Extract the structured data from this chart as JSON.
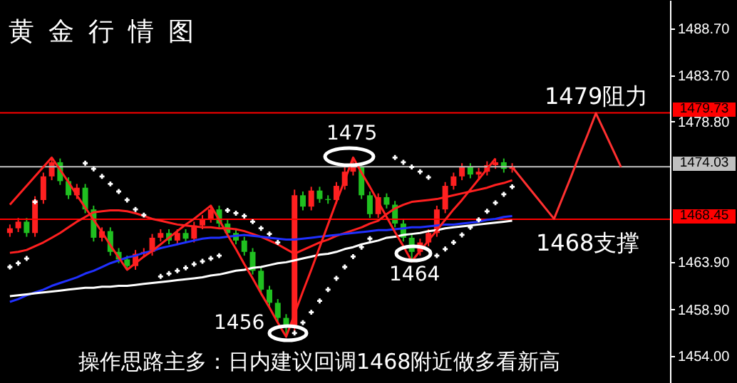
{
  "chart_data": {
    "type": "candlestick",
    "title": "黄金行情图",
    "categories": [
      null,
      null,
      null,
      null,
      null,
      null,
      null,
      null,
      null,
      null,
      null,
      null,
      null,
      null,
      null,
      null,
      null,
      null,
      null,
      null,
      null,
      null,
      null,
      null,
      null,
      null,
      null,
      null,
      null,
      null,
      null,
      null,
      null,
      null,
      null,
      null,
      null,
      null,
      null,
      null,
      null,
      null,
      null,
      null,
      null,
      null,
      null,
      null,
      null,
      null,
      null,
      null,
      null,
      null,
      null,
      null,
      null,
      null,
      null,
      null,
      null,
      null,
      null,
      null,
      null,
      null,
      null,
      null,
      null,
      null,
      null,
      null,
      null,
      null,
      null,
      null,
      null,
      null,
      null
    ],
    "ohlc": [
      [
        1467.0,
        1467.9,
        1466.6,
        1467.5
      ],
      [
        1467.5,
        1468.6,
        1467.1,
        1468.2
      ],
      [
        1468.2,
        1468.6,
        1466.6,
        1467.0
      ],
      [
        1467.0,
        1470.9,
        1466.6,
        1470.5
      ],
      [
        1470.5,
        1473.4,
        1470.1,
        1473.0
      ],
      [
        1473.0,
        1475.0,
        1472.6,
        1474.5
      ],
      [
        1474.5,
        1474.9,
        1472.1,
        1472.5
      ],
      [
        1472.5,
        1472.9,
        1470.6,
        1471.0
      ],
      [
        1471.0,
        1472.2,
        1470.6,
        1471.8
      ],
      [
        1471.8,
        1472.2,
        1469.1,
        1469.5
      ],
      [
        1469.5,
        1469.9,
        1466.1,
        1466.5
      ],
      [
        1466.5,
        1467.6,
        1466.1,
        1467.2
      ],
      [
        1467.2,
        1467.6,
        1464.6,
        1465.0
      ],
      [
        1465.0,
        1465.4,
        1463.8,
        1464.2
      ],
      [
        1464.2,
        1464.6,
        1463.1,
        1463.5
      ],
      [
        1463.5,
        1465.2,
        1463.1,
        1464.8
      ],
      [
        1464.8,
        1465.4,
        1464.4,
        1465.0
      ],
      [
        1465.0,
        1466.9,
        1464.6,
        1466.5
      ],
      [
        1466.5,
        1467.4,
        1466.1,
        1467.0
      ],
      [
        1467.0,
        1467.4,
        1465.8,
        1466.2
      ],
      [
        1466.2,
        1467.4,
        1465.8,
        1467.0
      ],
      [
        1467.0,
        1467.4,
        1466.0,
        1466.4
      ],
      [
        1466.4,
        1468.2,
        1466.0,
        1467.8
      ],
      [
        1467.8,
        1468.9,
        1467.4,
        1468.5
      ],
      [
        1468.5,
        1469.9,
        1468.1,
        1469.5
      ],
      [
        1469.5,
        1469.9,
        1467.6,
        1468.0
      ],
      [
        1468.0,
        1468.4,
        1466.6,
        1467.0
      ],
      [
        1467.0,
        1467.4,
        1465.8,
        1466.2
      ],
      [
        1466.2,
        1466.6,
        1464.6,
        1465.0
      ],
      [
        1465.0,
        1465.4,
        1462.6,
        1463.0
      ],
      [
        1463.0,
        1463.4,
        1460.6,
        1461.0
      ],
      [
        1461.0,
        1461.4,
        1459.2,
        1459.6
      ],
      [
        1459.6,
        1460.0,
        1457.6,
        1458.0
      ],
      [
        1458.0,
        1458.4,
        1456.0,
        1457.0
      ],
      [
        1457.0,
        1471.6,
        1456.6,
        1471.0
      ],
      [
        1471.0,
        1471.4,
        1469.4,
        1469.8
      ],
      [
        1469.8,
        1471.9,
        1469.4,
        1471.5
      ],
      [
        1471.5,
        1471.9,
        1470.2,
        1470.6
      ],
      [
        1470.6,
        1471.0,
        1470.1,
        1470.5
      ],
      [
        1470.5,
        1472.4,
        1470.1,
        1472.0
      ],
      [
        1472.0,
        1474.3,
        1471.6,
        1473.5
      ],
      [
        1473.5,
        1475.0,
        1473.1,
        1474.0
      ],
      [
        1474.0,
        1474.4,
        1470.6,
        1471.0
      ],
      [
        1471.0,
        1471.4,
        1468.6,
        1469.0
      ],
      [
        1469.0,
        1471.2,
        1468.6,
        1470.8
      ],
      [
        1470.8,
        1471.2,
        1469.6,
        1470.0
      ],
      [
        1470.0,
        1470.4,
        1467.6,
        1468.0
      ],
      [
        1468.0,
        1468.4,
        1466.1,
        1466.5
      ],
      [
        1466.5,
        1466.9,
        1464.0,
        1465.0
      ],
      [
        1465.0,
        1466.4,
        1464.6,
        1466.0
      ],
      [
        1466.0,
        1467.4,
        1465.6,
        1467.0
      ],
      [
        1467.0,
        1469.9,
        1466.6,
        1469.5
      ],
      [
        1469.5,
        1472.4,
        1469.1,
        1472.0
      ],
      [
        1472.0,
        1473.4,
        1471.6,
        1473.0
      ],
      [
        1473.0,
        1474.4,
        1472.6,
        1474.0
      ],
      [
        1474.0,
        1474.4,
        1472.8,
        1473.2
      ],
      [
        1473.2,
        1473.9,
        1472.8,
        1473.5
      ],
      [
        1473.5,
        1474.6,
        1473.1,
        1474.2
      ],
      [
        1474.2,
        1474.9,
        1473.8,
        1474.5
      ],
      [
        1474.5,
        1474.9,
        1473.4,
        1473.8
      ],
      [
        1473.8,
        1474.4,
        1473.4,
        1474.03
      ],
      null,
      null,
      null,
      null,
      null,
      null,
      null,
      null,
      null,
      null,
      null,
      null,
      null,
      null,
      null,
      null,
      null,
      null
    ],
    "colors": [
      "#ff2020",
      "#ff2020",
      "#20c020",
      "#ff2020",
      "#ff2020",
      "#ff2020",
      "#20c020",
      "#20c020",
      "#ff2020",
      "#20c020",
      "#20c020",
      "#ff2020",
      "#20c020",
      "#20c020",
      "#20c020",
      "#ff2020",
      "#ff2020",
      "#ff2020",
      "#ff2020",
      "#20c020",
      "#ff2020",
      "#20c020",
      "#ff2020",
      "#ff2020",
      "#ff2020",
      "#20c020",
      "#20c020",
      "#20c020",
      "#20c020",
      "#20c020",
      "#20c020",
      "#20c020",
      "#20c020",
      "#20c020",
      "#ff2020",
      "#20c020",
      "#ff2020",
      "#20c020",
      "#20c020",
      "#ff2020",
      "#ff2020",
      "#ff2020",
      "#20c020",
      "#20c020",
      "#ff2020",
      "#20c020",
      "#20c020",
      "#20c020",
      "#20c020",
      "#ff2020",
      "#ff2020",
      "#ff2020",
      "#ff2020",
      "#ff2020",
      "#ff2020",
      "#20c020",
      "#ff2020",
      "#ff2020",
      "#ff2020",
      "#20c020",
      "#ff2020",
      null,
      null,
      null,
      null,
      null,
      null,
      null,
      null,
      null,
      null,
      null,
      null,
      null,
      null,
      null,
      null,
      null,
      null
    ],
    "series": [
      {
        "type": "line",
        "color": "#ff2020",
        "values": [
          1464.9,
          1465.0,
          1465.2,
          1465.6,
          1466.0,
          1466.5,
          1467.0,
          1467.6,
          1468.2,
          1468.7,
          1469.2,
          1469.3,
          1469.4,
          1469.4,
          1469.3,
          1469.1,
          1468.8,
          1468.5,
          1468.3,
          1468.1,
          1467.9,
          1467.8,
          1467.7,
          1467.6,
          1467.6,
          1467.5,
          1467.5,
          1467.4,
          1467.2,
          1466.9,
          1466.6,
          1466.2,
          1465.8,
          1465.3,
          1464.8,
          1465.2,
          1465.6,
          1466.0,
          1466.3,
          1466.7,
          1467.0,
          1467.3,
          1467.6,
          1468.0,
          1468.3,
          1469.0,
          1469.6,
          1470.0,
          1470.3,
          1470.4,
          1470.5,
          1470.6,
          1470.8,
          1471.0,
          1471.2,
          1471.4,
          1471.6,
          1471.8,
          1472.1,
          1472.3,
          1472.6,
          null,
          null,
          null,
          null,
          null,
          null,
          null,
          null,
          null,
          null,
          null,
          null,
          null,
          null,
          null,
          null,
          null,
          null
        ]
      },
      {
        "type": "line",
        "color": "#2030ff",
        "values": [
          1459.7,
          1460.0,
          1460.4,
          1460.7,
          1461.0,
          1461.4,
          1461.7,
          1462.0,
          1462.3,
          1462.7,
          1463.0,
          1463.4,
          1463.8,
          1464.1,
          1464.4,
          1464.6,
          1464.9,
          1465.1,
          1465.4,
          1465.6,
          1465.8,
          1466.0,
          1466.2,
          1466.4,
          1466.5,
          1466.5,
          1466.6,
          1466.7,
          1466.8,
          1466.7,
          1466.6,
          1466.5,
          1466.4,
          1466.3,
          1466.3,
          1466.4,
          1466.5,
          1466.6,
          1466.7,
          1466.8,
          1466.9,
          1467.0,
          1467.1,
          1467.2,
          1467.3,
          1467.3,
          1467.4,
          1467.5,
          1467.6,
          1467.6,
          1467.7,
          1467.8,
          1467.9,
          1467.9,
          1468.0,
          1468.1,
          1468.2,
          1468.4,
          1468.5,
          1468.7,
          1468.8,
          null,
          null,
          null,
          null,
          null,
          null,
          null,
          null,
          null,
          null,
          null,
          null,
          null,
          null,
          null,
          null,
          null,
          null
        ]
      },
      {
        "type": "line",
        "color": "#ffffff",
        "values": [
          1460.3,
          1460.4,
          1460.5,
          1460.6,
          1460.7,
          1460.8,
          1460.9,
          1461.0,
          1461.1,
          1461.2,
          1461.2,
          1461.3,
          1461.3,
          1461.4,
          1461.4,
          1461.5,
          1461.6,
          1461.7,
          1461.8,
          1461.9,
          1462.0,
          1462.1,
          1462.2,
          1462.3,
          1462.5,
          1462.6,
          1462.8,
          1463.0,
          1463.1,
          1463.3,
          1463.4,
          1463.6,
          1463.8,
          1463.9,
          1464.1,
          1464.3,
          1464.5,
          1464.7,
          1464.8,
          1465.0,
          1465.3,
          1465.5,
          1465.8,
          1466.0,
          1466.2,
          1466.5,
          1466.6,
          1466.8,
          1466.9,
          1467.0,
          1467.2,
          1467.3,
          1467.5,
          1467.6,
          1467.7,
          1467.8,
          1467.9,
          1468.0,
          1468.1,
          1468.2,
          1468.3,
          null,
          null,
          null,
          null,
          null,
          null,
          null,
          null,
          null,
          null,
          null,
          null,
          null,
          null,
          null,
          null,
          null,
          null
        ]
      },
      {
        "type": "scatter",
        "marker": "cross",
        "color": "#ffffff",
        "values": [
          1463.4,
          1463.8,
          1464.3,
          1470.3,
          null,
          null,
          null,
          null,
          null,
          1474.4,
          1473.8,
          1473.0,
          1472.2,
          1471.4,
          1470.5,
          1469.5,
          1468.9,
          null,
          1462.4,
          1462.7,
          1463.0,
          1463.3,
          1463.7,
          1464.0,
          1464.3,
          1464.6,
          1469.4,
          1469.1,
          1468.8,
          1468.2,
          1467.5,
          1466.9,
          1466.0,
          null,
          1456.4,
          1457.5,
          1458.6,
          1459.8,
          1461.0,
          1462.2,
          1463.4,
          1464.5,
          1465.5,
          1466.4,
          null,
          null,
          1475.0,
          1474.5,
          1474.0,
          1473.5,
          1472.9,
          1464.6,
          1465.3,
          1466.0,
          1466.8,
          1467.6,
          1468.4,
          1469.3,
          1470.2,
          1471.1,
          1471.9,
          null,
          null,
          null,
          null,
          null,
          null,
          null,
          null,
          null,
          null,
          null,
          null,
          null,
          null,
          null,
          null,
          null,
          null
        ]
      },
      {
        "type": "line",
        "color": "#ff2020",
        "values": [
          1470.0,
          1471.0,
          1472.0,
          1473.0,
          1474.0,
          1475.0,
          1473.7,
          1472.4,
          1471.0,
          1469.7,
          1468.4,
          1467.1,
          1465.7,
          1464.4,
          1463.1,
          1463.8,
          1464.5,
          1465.1,
          1465.8,
          1466.5,
          1467.2,
          1467.9,
          1468.5,
          1469.2,
          1469.9,
          1468.4,
          1466.8,
          1465.3,
          1463.7,
          1462.2,
          1460.6,
          1459.1,
          1457.5,
          1456.0,
          1458.4,
          1460.8,
          1463.1,
          1465.5,
          1467.9,
          1470.3,
          1472.6,
          1475.0,
          1473.4,
          1471.9,
          1470.3,
          1468.7,
          1467.1,
          1465.6,
          1464.0,
          1465.1,
          1466.2,
          1467.3,
          1468.4,
          1469.5,
          1470.5,
          1471.6,
          1472.7,
          1473.8,
          1474.9,
          null,
          null,
          null,
          null,
          null,
          null,
          null,
          null,
          null,
          null,
          null,
          null,
          null,
          null,
          null,
          null,
          null,
          null,
          null,
          null
        ]
      },
      {
        "type": "line",
        "color": "#ff3030",
        "values": [
          null,
          null,
          null,
          null,
          null,
          null,
          null,
          null,
          null,
          null,
          null,
          null,
          null,
          null,
          null,
          null,
          null,
          null,
          null,
          null,
          null,
          null,
          null,
          null,
          null,
          null,
          null,
          null,
          null,
          null,
          null,
          null,
          null,
          null,
          null,
          null,
          null,
          null,
          null,
          null,
          null,
          null,
          null,
          null,
          null,
          null,
          null,
          null,
          null,
          null,
          null,
          null,
          null,
          null,
          null,
          null,
          null,
          null,
          null,
          null,
          1474.0,
          1472.9,
          1471.8,
          1470.7,
          1469.6,
          1468.5,
          1470.7,
          1472.9,
          1475.2,
          1477.4,
          1479.7,
          1477.8,
          1475.9,
          1474.0,
          null,
          null,
          null,
          null,
          null
        ]
      }
    ],
    "ylim": [
      1451.1,
      1491.7
    ],
    "yticks": [
      {
        "value": 1454,
        "label": "1454.00"
      },
      {
        "value": 1458.9,
        "label": "1458.90"
      },
      {
        "value": 1463.9,
        "label": "1463.90"
      },
      {
        "value": 1478.8,
        "label": "1478.80"
      },
      {
        "value": 1483.7,
        "label": "1483.70"
      },
      {
        "value": 1488.7,
        "label": "1488.70"
      }
    ],
    "ref_lines": [
      {
        "axis": "y",
        "value": 1479.73,
        "label": "1479.73",
        "color": "#ff0000"
      },
      {
        "axis": "y",
        "value": 1474.03,
        "label": "1474.03",
        "color": "#c0c0c0"
      },
      {
        "axis": "y",
        "value": 1468.45,
        "label": "1468.45",
        "color": "#ff0000"
      }
    ],
    "annotations": [
      "1475",
      "1456",
      "1464",
      "1479阻力",
      "1468支撑",
      "操作思路主多：日内建议回调1468附近做多看新高"
    ],
    "tick_labels": "y",
    "grid": false
  }
}
